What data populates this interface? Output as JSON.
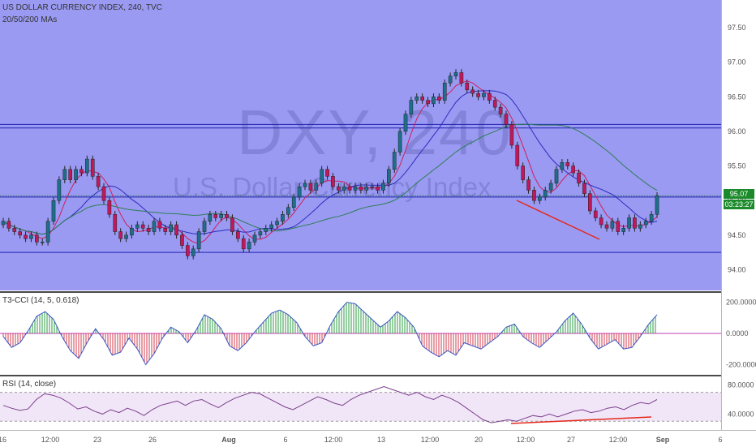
{
  "header": {
    "symbol_title": "US DOLLAR CURRENCY INDEX, 240, TVC",
    "ma_legend": "20/50/200 MAs"
  },
  "watermark": {
    "ticker": "DXY, 240",
    "name": "U.S. Dollar Currency Index"
  },
  "price_badges": {
    "last": "95.07",
    "countdown": "03:23:27",
    "last_color": "#1b8a2a",
    "countdown_color": "#1b8a2a"
  },
  "colors": {
    "main_bg": "#9a9af2",
    "bull_candle": "#1d6f8c",
    "bear_candle": "#c2185b",
    "ma20": "#d21d5c",
    "ma50": "#2d2dbf",
    "ma200": "#2e7d55",
    "hline": "#2121b3",
    "divergence": "#e5281c"
  },
  "indicators": {
    "cci_label": "T3-CCI (14, 5, 0.618)",
    "rsi_label": "RSI (14, close)"
  },
  "chart_data": [
    {
      "type": "candlestick",
      "title": "US DOLLAR CURRENCY INDEX, 240, TVC",
      "y_ticks": [
        "97.50",
        "97.00",
        "96.50",
        "96.00",
        "95.50",
        "95.00",
        "94.50",
        "94.00"
      ],
      "ylim": [
        93.7,
        97.9
      ],
      "x_ticks": [
        "16",
        "12:00",
        "23",
        "26",
        "Aug",
        "6",
        "12:00",
        "13",
        "12:00",
        "20",
        "12:00",
        "27",
        "12:00",
        "Sep",
        "6"
      ],
      "horizontal_levels": [
        96.1,
        96.05,
        95.05,
        94.25
      ],
      "last_price": 95.07,
      "ohlc_close_path": [
        94.7,
        94.6,
        94.55,
        94.5,
        94.45,
        94.5,
        94.4,
        94.4,
        94.7,
        95.0,
        95.3,
        95.45,
        95.3,
        95.45,
        95.4,
        95.6,
        95.35,
        95.2,
        95.0,
        94.8,
        94.55,
        94.45,
        94.5,
        94.6,
        94.65,
        94.6,
        94.55,
        94.7,
        94.6,
        94.55,
        94.65,
        94.5,
        94.35,
        94.2,
        94.3,
        94.55,
        94.7,
        94.8,
        94.75,
        94.8,
        94.75,
        94.55,
        94.45,
        94.3,
        94.4,
        94.5,
        94.55,
        94.6,
        94.65,
        94.7,
        94.8,
        94.9,
        95.05,
        95.2,
        95.25,
        95.15,
        95.25,
        95.45,
        95.35,
        95.2,
        95.15,
        95.2,
        95.15,
        95.2,
        95.15,
        95.2,
        95.2,
        95.15,
        95.25,
        95.45,
        95.7,
        96.0,
        96.25,
        96.45,
        96.5,
        96.45,
        96.4,
        96.5,
        96.45,
        96.7,
        96.8,
        96.85,
        96.7,
        96.6,
        96.55,
        96.5,
        96.55,
        96.45,
        96.35,
        96.25,
        96.1,
        95.8,
        95.5,
        95.3,
        95.15,
        95.0,
        95.05,
        95.15,
        95.25,
        95.45,
        95.55,
        95.5,
        95.4,
        95.25,
        95.1,
        94.85,
        94.75,
        94.65,
        94.6,
        94.7,
        94.55,
        94.6,
        94.75,
        94.6,
        94.65,
        94.7,
        94.8,
        95.07
      ]
    },
    {
      "type": "line",
      "title": "T3-CCI (14, 5, 0.618)",
      "y_ticks": [
        "200.0000",
        "0.0000",
        "-200.0000"
      ],
      "ylim": [
        -260,
        260
      ],
      "values": [
        -20,
        -90,
        -60,
        20,
        110,
        140,
        90,
        -20,
        -110,
        -160,
        -60,
        30,
        -40,
        -140,
        -120,
        -30,
        -100,
        -200,
        -130,
        -30,
        40,
        10,
        -60,
        20,
        120,
        90,
        30,
        -80,
        -110,
        -60,
        10,
        70,
        130,
        150,
        120,
        70,
        -20,
        -80,
        -60,
        50,
        140,
        200,
        190,
        140,
        90,
        40,
        80,
        140,
        100,
        40,
        -80,
        -120,
        -150,
        -110,
        -140,
        -60,
        -80,
        -100,
        -60,
        -20,
        40,
        60,
        -20,
        -60,
        -90,
        -40,
        10,
        80,
        130,
        60,
        -30,
        -100,
        -70,
        -40,
        -100,
        -90,
        -20,
        60,
        120
      ]
    },
    {
      "type": "line",
      "title": "RSI (14, close)",
      "y_ticks": [
        "80.0000",
        "40.0000"
      ],
      "ylim": [
        18,
        92
      ],
      "upper_band": 70,
      "lower_band": 30,
      "values": [
        52,
        48,
        45,
        47,
        60,
        68,
        66,
        62,
        55,
        47,
        50,
        44,
        40,
        46,
        42,
        48,
        44,
        38,
        46,
        52,
        55,
        58,
        52,
        58,
        60,
        54,
        49,
        56,
        62,
        66,
        70,
        68,
        62,
        56,
        50,
        46,
        52,
        58,
        64,
        60,
        55,
        52,
        60,
        66,
        70,
        74,
        78,
        74,
        70,
        66,
        70,
        64,
        60,
        66,
        62,
        56,
        48,
        40,
        32,
        28,
        30,
        32,
        30,
        34,
        38,
        36,
        40,
        36,
        40,
        44,
        46,
        42,
        44,
        48,
        50,
        46,
        52,
        56,
        54,
        60
      ]
    }
  ]
}
